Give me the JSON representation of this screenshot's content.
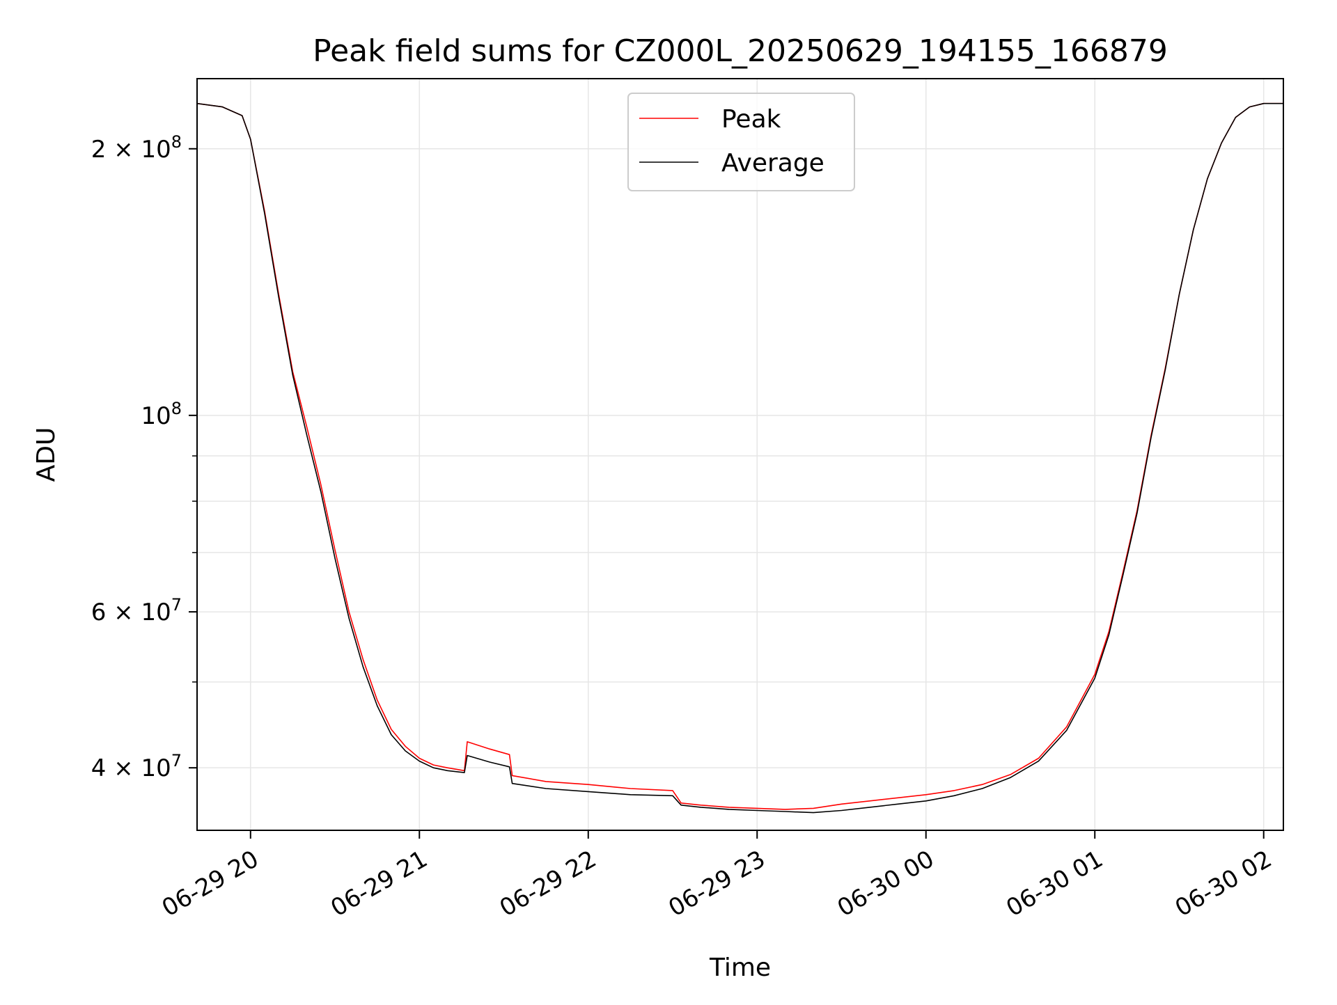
{
  "chart_data": {
    "type": "line",
    "title": "Peak field sums for CZ000L_20250629_194155_166879",
    "xlabel": "Time",
    "ylabel": "ADU",
    "yscale": "log",
    "ylim": [
      34000000,
      240000000
    ],
    "xlim": [
      "2025-06-29 19:41",
      "2025-06-30 02:07"
    ],
    "grid": true,
    "legend_position": "top-center",
    "x_ticks": [
      {
        "value": "2025-06-29 20:00",
        "label": "06-29 20"
      },
      {
        "value": "2025-06-29 21:00",
        "label": "06-29 21"
      },
      {
        "value": "2025-06-29 22:00",
        "label": "06-29 22"
      },
      {
        "value": "2025-06-29 23:00",
        "label": "06-29 23"
      },
      {
        "value": "2025-06-30 00:00",
        "label": "06-30 00"
      },
      {
        "value": "2025-06-30 01:00",
        "label": "06-30 01"
      },
      {
        "value": "2025-06-30 02:00",
        "label": "06-30 02"
      }
    ],
    "y_ticks": [
      {
        "value": 40000000,
        "mantissa": "4",
        "exponent": "7"
      },
      {
        "value": 60000000,
        "mantissa": "6",
        "exponent": "7"
      },
      {
        "value": 100000000,
        "mantissa": "",
        "exponent": "8"
      },
      {
        "value": 200000000,
        "mantissa": "2",
        "exponent": "8"
      }
    ],
    "y_minor_ticks": [
      50000000,
      70000000,
      80000000,
      90000000
    ],
    "series": [
      {
        "name": "Peak",
        "color": "#ff0000",
        "x": [
          "2025-06-29 19:41",
          "2025-06-29 19:50",
          "2025-06-29 19:57",
          "2025-06-29 20:00",
          "2025-06-29 20:05",
          "2025-06-29 20:10",
          "2025-06-29 20:15",
          "2025-06-29 20:20",
          "2025-06-29 20:25",
          "2025-06-29 20:30",
          "2025-06-29 20:35",
          "2025-06-29 20:40",
          "2025-06-29 20:45",
          "2025-06-29 20:50",
          "2025-06-29 20:55",
          "2025-06-29 21:00",
          "2025-06-29 21:05",
          "2025-06-29 21:10",
          "2025-06-29 21:16",
          "2025-06-29 21:17",
          "2025-06-29 21:25",
          "2025-06-29 21:32",
          "2025-06-29 21:33",
          "2025-06-29 21:45",
          "2025-06-29 22:00",
          "2025-06-29 22:15",
          "2025-06-29 22:30",
          "2025-06-29 22:33",
          "2025-06-29 22:40",
          "2025-06-29 22:50",
          "2025-06-29 23:00",
          "2025-06-29 23:10",
          "2025-06-29 23:20",
          "2025-06-29 23:30",
          "2025-06-29 23:40",
          "2025-06-29 23:50",
          "2025-06-30 00:00",
          "2025-06-30 00:10",
          "2025-06-30 00:20",
          "2025-06-30 00:30",
          "2025-06-30 00:40",
          "2025-06-30 00:50",
          "2025-06-30 01:00",
          "2025-06-30 01:05",
          "2025-06-30 01:10",
          "2025-06-30 01:15",
          "2025-06-30 01:20",
          "2025-06-30 01:25",
          "2025-06-30 01:30",
          "2025-06-30 01:35",
          "2025-06-30 01:40",
          "2025-06-30 01:45",
          "2025-06-30 01:50",
          "2025-06-30 01:55",
          "2025-06-30 02:00",
          "2025-06-30 02:07"
        ],
        "values": [
          225000000,
          223000000,
          218000000,
          205000000,
          170000000,
          137000000,
          112000000,
          97000000,
          83500000,
          70500000,
          60000000,
          53000000,
          47700000,
          44200000,
          42300000,
          41000000,
          40300000,
          40000000,
          39700000,
          42800000,
          42000000,
          41400000,
          39200000,
          38600000,
          38300000,
          37900000,
          37700000,
          36500000,
          36300000,
          36100000,
          36000000,
          35900000,
          36000000,
          36400000,
          36700000,
          37000000,
          37300000,
          37700000,
          38300000,
          39300000,
          41000000,
          44500000,
          51000000,
          57000000,
          66500000,
          78000000,
          95000000,
          113000000,
          137000000,
          162000000,
          185000000,
          203000000,
          217000000,
          223000000,
          225000000,
          225000000
        ]
      },
      {
        "name": "Average",
        "color": "#000000",
        "x": [
          "2025-06-29 19:41",
          "2025-06-29 19:50",
          "2025-06-29 19:57",
          "2025-06-29 20:00",
          "2025-06-29 20:05",
          "2025-06-29 20:10",
          "2025-06-29 20:15",
          "2025-06-29 20:20",
          "2025-06-29 20:25",
          "2025-06-29 20:30",
          "2025-06-29 20:35",
          "2025-06-29 20:40",
          "2025-06-29 20:45",
          "2025-06-29 20:50",
          "2025-06-29 20:55",
          "2025-06-29 21:00",
          "2025-06-29 21:05",
          "2025-06-29 21:10",
          "2025-06-29 21:16",
          "2025-06-29 21:17",
          "2025-06-29 21:25",
          "2025-06-29 21:32",
          "2025-06-29 21:33",
          "2025-06-29 21:45",
          "2025-06-29 22:00",
          "2025-06-29 22:15",
          "2025-06-29 22:30",
          "2025-06-29 22:33",
          "2025-06-29 22:40",
          "2025-06-29 22:50",
          "2025-06-29 23:00",
          "2025-06-29 23:10",
          "2025-06-29 23:20",
          "2025-06-29 23:30",
          "2025-06-29 23:40",
          "2025-06-29 23:50",
          "2025-06-30 00:00",
          "2025-06-30 00:10",
          "2025-06-30 00:20",
          "2025-06-30 00:30",
          "2025-06-30 00:40",
          "2025-06-30 00:50",
          "2025-06-30 01:00",
          "2025-06-30 01:05",
          "2025-06-30 01:10",
          "2025-06-30 01:15",
          "2025-06-30 01:20",
          "2025-06-30 01:25",
          "2025-06-30 01:30",
          "2025-06-30 01:35",
          "2025-06-30 01:40",
          "2025-06-30 01:45",
          "2025-06-30 01:50",
          "2025-06-30 01:55",
          "2025-06-30 02:00",
          "2025-06-30 02:07"
        ],
        "values": [
          225000000,
          223000000,
          218000000,
          205000000,
          169000000,
          136000000,
          111000000,
          95000000,
          82000000,
          69000000,
          59000000,
          52000000,
          47000000,
          43600000,
          41800000,
          40700000,
          40000000,
          39700000,
          39500000,
          41300000,
          40600000,
          40100000,
          38400000,
          37900000,
          37600000,
          37300000,
          37200000,
          36300000,
          36100000,
          35900000,
          35800000,
          35700000,
          35600000,
          35800000,
          36100000,
          36400000,
          36700000,
          37200000,
          37900000,
          39000000,
          40700000,
          44100000,
          50500000,
          56500000,
          66000000,
          77500000,
          94500000,
          112500000,
          137000000,
          162000000,
          185000000,
          203000000,
          217000000,
          223000000,
          225000000,
          225000000
        ]
      }
    ]
  }
}
